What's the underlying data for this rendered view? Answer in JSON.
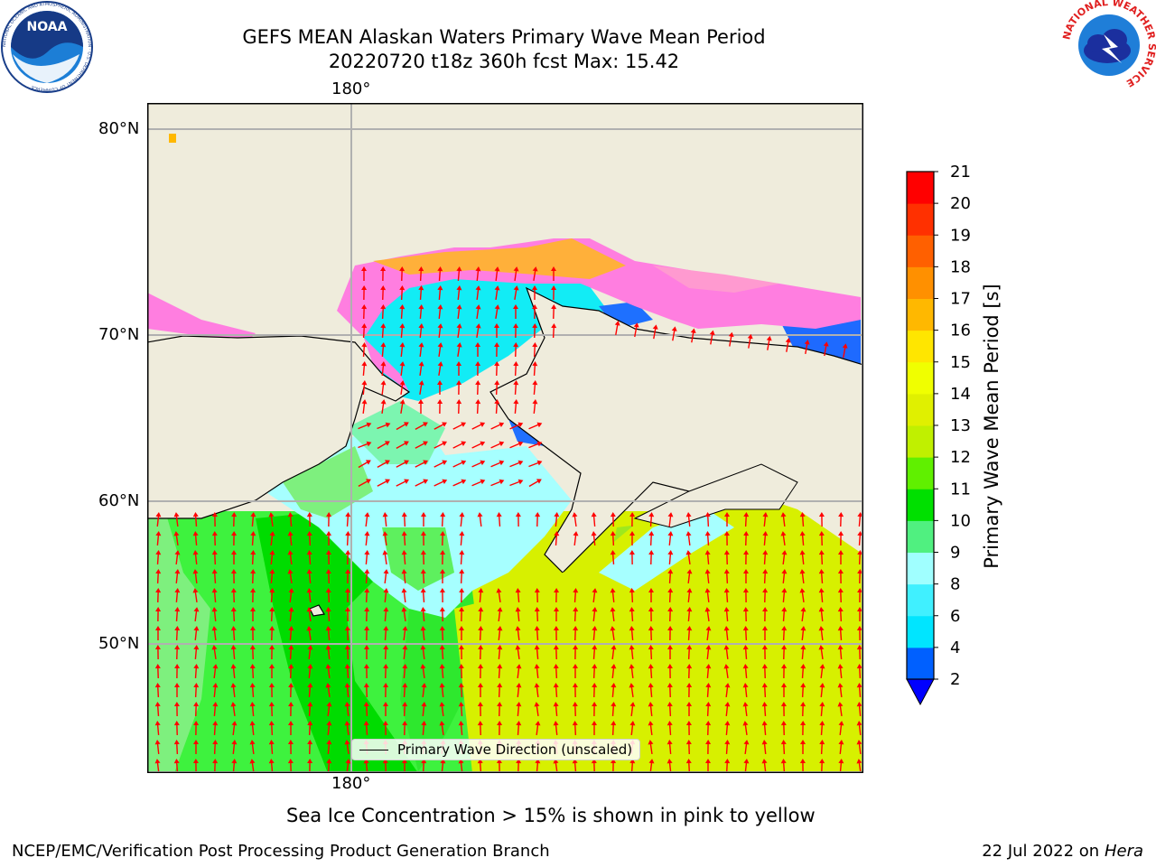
{
  "title": {
    "line1": "GEFS MEAN Alaskan Waters Primary Wave Mean Period",
    "line2": "20220720 t18z 360h fcst   Max: 15.42"
  },
  "map": {
    "lon_label_top": "180°",
    "lon_label_bottom": "180°",
    "lat_labels": [
      "80°N",
      "70°N",
      "60°N",
      "50°N"
    ],
    "land_color": "#efecdc",
    "grid_color": "#b0b0b0",
    "arrow_color": "#ff0000",
    "legend_label": "Primary Wave Direction (unscaled)"
  },
  "colorbar": {
    "label": "Primary Wave Mean Period [s]",
    "levels": [
      "2",
      "4",
      "6",
      "8",
      "9",
      "10",
      "11",
      "12",
      "13",
      "14",
      "15",
      "16",
      "17",
      "18",
      "19",
      "20",
      "21"
    ],
    "colors": [
      "#0060ff",
      "#00e5ff",
      "#40f0ff",
      "#a0ffff",
      "#50f080",
      "#00e000",
      "#60f000",
      "#c0f000",
      "#e0f000",
      "#f0ff00",
      "#ffe600",
      "#ffb800",
      "#ff9000",
      "#ff6000",
      "#ff3000",
      "#ff0000"
    ],
    "under_color": "#0000ff"
  },
  "notes": {
    "ice": "Sea Ice Concentration > 15% is shown in pink to yellow",
    "credit": "NCEP/EMC/Verification Post Processing Product Generation Branch",
    "date": "22 Jul 2022 on ",
    "machine": "Hera"
  },
  "logos": {
    "noaa_text": "NOAA",
    "noaa_ring": "NATIONAL OCEANIC AND ATMOSPHERIC ADMINISTRATION · U.S. DEPARTMENT OF COMMERCE",
    "nws_ring": "NATIONAL WEATHER SERVICE"
  }
}
